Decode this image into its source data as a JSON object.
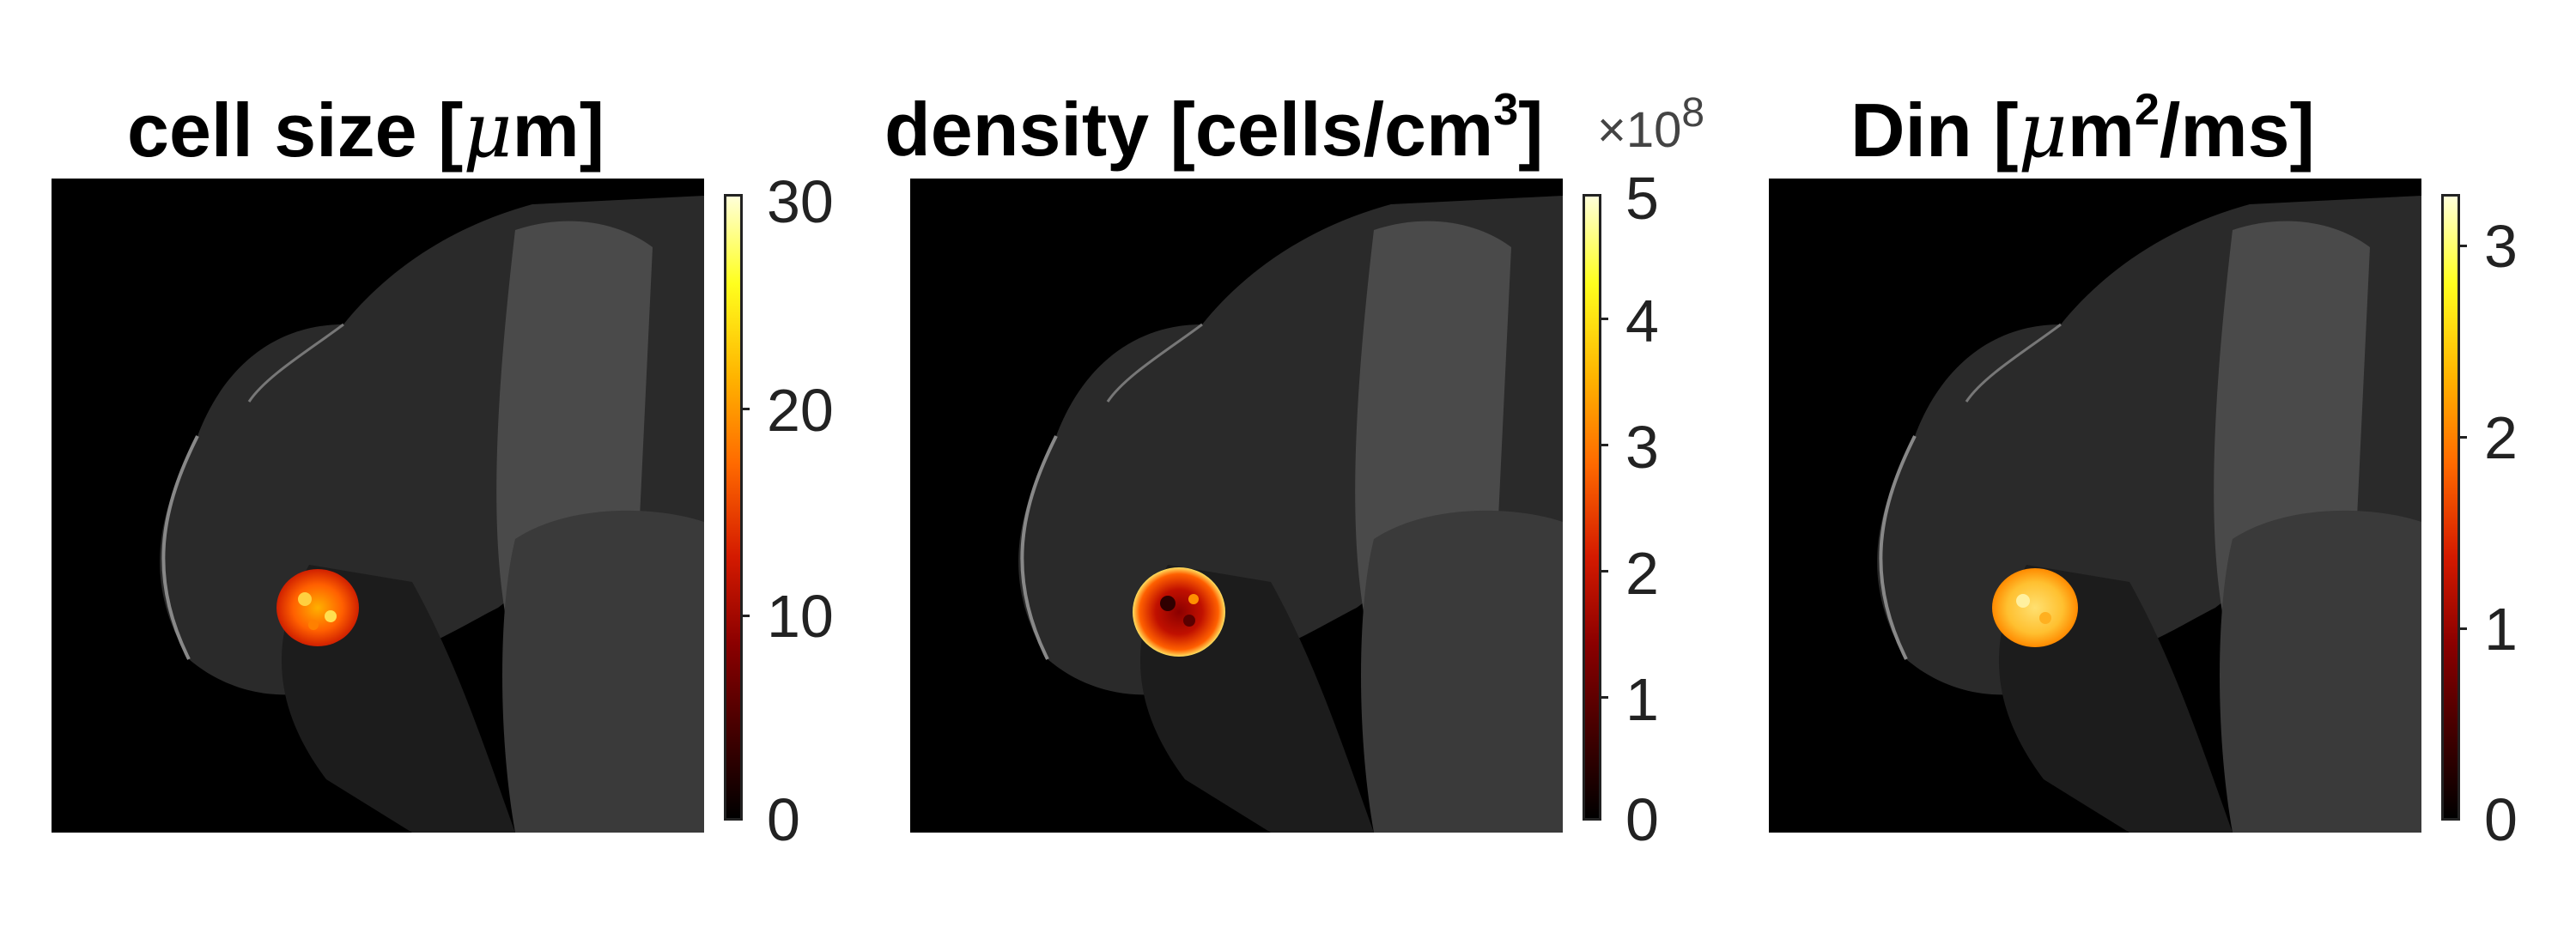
{
  "panels": [
    {
      "title_prefix": "cell size [",
      "title_mu": "μ",
      "title_mid": "m",
      "title_sup": "",
      "title_suffix": "]",
      "colorbar_ticks": [
        "30",
        "20",
        "10",
        "0"
      ],
      "multiplier": "",
      "lesion_level": 0.55
    },
    {
      "title_prefix": "density [cells/cm",
      "title_mu": "",
      "title_mid": "",
      "title_sup": "3",
      "title_suffix": "]",
      "colorbar_ticks": [
        "5",
        "4",
        "3",
        "2",
        "1",
        "0"
      ],
      "multiplier": "×10",
      "multiplier_exp": "8",
      "lesion_level": 0.4
    },
    {
      "title_prefix": "Din [",
      "title_mu": "μ",
      "title_mid": "m",
      "title_sup": "2",
      "title_suffix": "/ms]",
      "colorbar_ticks": [
        "3",
        "2",
        "1",
        "0"
      ],
      "multiplier": "",
      "lesion_level": 0.75
    }
  ],
  "colormap": [
    "#000000",
    "#3a0000",
    "#8b0000",
    "#d41a00",
    "#ff6a00",
    "#ffb400",
    "#ffff1e",
    "#ffffd8"
  ]
}
